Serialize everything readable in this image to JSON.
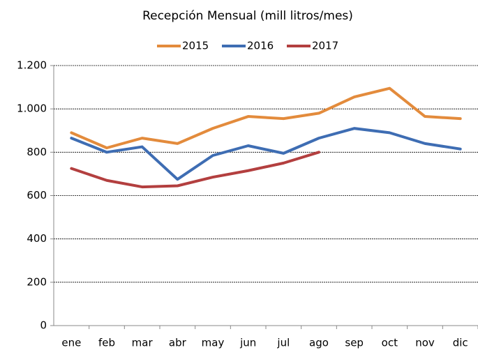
{
  "chart_data": {
    "type": "line",
    "title": "Recepción Mensual (mill litros/mes)",
    "categories": [
      "ene",
      "feb",
      "mar",
      "abr",
      "may",
      "jun",
      "jul",
      "ago",
      "sep",
      "oct",
      "nov",
      "dic"
    ],
    "series": [
      {
        "name": "2015",
        "color": "#e38b3c",
        "values": [
          890,
          820,
          865,
          840,
          910,
          965,
          955,
          980,
          1055,
          1095,
          965,
          955
        ]
      },
      {
        "name": "2016",
        "color": "#3e6db3",
        "values": [
          865,
          800,
          825,
          675,
          785,
          830,
          795,
          865,
          910,
          890,
          840,
          815
        ]
      },
      {
        "name": "2017",
        "color": "#b33f3f",
        "values": [
          725,
          670,
          640,
          645,
          685,
          715,
          750,
          800,
          null,
          null,
          null,
          null
        ]
      }
    ],
    "ylim": [
      0,
      1200
    ],
    "yticks": [
      0,
      200,
      400,
      600,
      800,
      {
        "value": 1000,
        "label": "1.000"
      },
      {
        "value": 1200,
        "label": "1.200"
      }
    ],
    "grid": true,
    "legend": "top"
  }
}
